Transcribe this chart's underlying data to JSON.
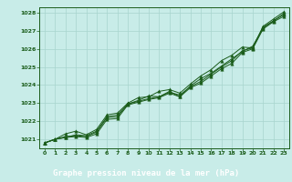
{
  "title": "Graphe pression niveau de la mer (hPa)",
  "plot_bg": "#c8ece8",
  "label_bg": "#2d6b4a",
  "grid_color": "#a8d4ce",
  "line_color": "#1a5c1a",
  "border_color": "#1a5c1a",
  "text_color": "#1a5c1a",
  "title_color": "#ffffff",
  "xlim": [
    -0.5,
    23.5
  ],
  "ylim": [
    1020.5,
    1028.3
  ],
  "yticks": [
    1021,
    1022,
    1023,
    1024,
    1025,
    1026,
    1027,
    1028
  ],
  "xticks": [
    0,
    1,
    2,
    3,
    4,
    5,
    6,
    7,
    8,
    9,
    10,
    11,
    12,
    13,
    14,
    15,
    16,
    17,
    18,
    19,
    20,
    21,
    22,
    23
  ],
  "series1": [
    1020.8,
    1021.0,
    1021.1,
    1021.15,
    1021.1,
    1021.3,
    1022.1,
    1022.15,
    1022.9,
    1023.05,
    1023.2,
    1023.3,
    1023.55,
    1023.35,
    1023.85,
    1024.1,
    1024.5,
    1024.9,
    1025.2,
    1025.8,
    1026.0,
    1027.1,
    1027.5,
    1027.8
  ],
  "series2": [
    1020.8,
    1021.0,
    1021.15,
    1021.2,
    1021.15,
    1021.4,
    1022.2,
    1022.25,
    1022.95,
    1023.1,
    1023.25,
    1023.35,
    1023.6,
    1023.45,
    1023.9,
    1024.2,
    1024.6,
    1025.0,
    1025.35,
    1025.9,
    1026.05,
    1027.2,
    1027.55,
    1027.9
  ],
  "series3": [
    1020.8,
    1021.0,
    1021.3,
    1021.45,
    1021.25,
    1021.55,
    1022.35,
    1022.45,
    1023.0,
    1023.3,
    1023.35,
    1023.65,
    1023.75,
    1023.55,
    1024.05,
    1024.5,
    1024.85,
    1025.35,
    1025.65,
    1026.1,
    1026.05,
    1027.25,
    1027.65,
    1028.05
  ],
  "series4": [
    1020.8,
    1021.0,
    1021.1,
    1021.25,
    1021.2,
    1021.45,
    1022.25,
    1022.35,
    1022.95,
    1023.15,
    1023.4,
    1023.35,
    1023.65,
    1023.35,
    1023.95,
    1024.35,
    1024.65,
    1025.05,
    1025.45,
    1025.85,
    1026.15,
    1027.15,
    1027.55,
    1027.95
  ]
}
